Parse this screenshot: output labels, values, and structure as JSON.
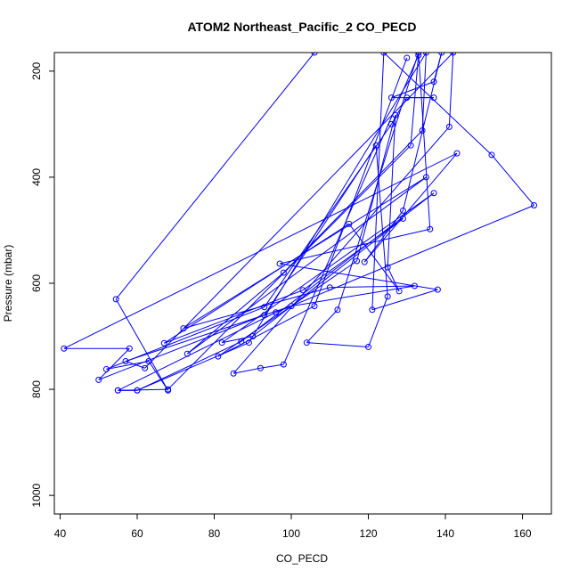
{
  "chart_data": {
    "type": "line",
    "title": "ATOM2 Northeast_Pacific_2 CO_PECD",
    "xlabel": "CO_PECD",
    "ylabel": "Pressure (mbar)",
    "xlim": [
      38.5,
      167.5
    ],
    "ylim": [
      1035,
      165
    ],
    "y_reversed": true,
    "x_ticks": [
      40,
      60,
      80,
      100,
      120,
      140,
      160
    ],
    "y_ticks": [
      200,
      400,
      600,
      800,
      1000
    ],
    "x_tick_labels": [
      "40",
      "60",
      "80",
      "100",
      "120",
      "140",
      "160"
    ],
    "y_tick_labels": [
      "200",
      "400",
      "600",
      "800",
      "1000"
    ],
    "grid": false,
    "legend": "none",
    "series_color": "#0000ff",
    "series": [
      {
        "values": [
          [
            106,
            165
          ],
          [
            54.5,
            630
          ],
          [
            68,
            802
          ],
          [
            63,
            747
          ],
          [
            52,
            762
          ],
          [
            93,
            645
          ],
          [
            126,
            300
          ],
          [
            130,
            250
          ],
          [
            137,
            250
          ],
          [
            126,
            250
          ],
          [
            137,
            220
          ],
          [
            139,
            165
          ],
          [
            129,
            463
          ],
          [
            119,
            560
          ],
          [
            143,
            355
          ],
          [
            41,
            723
          ],
          [
            58,
            723
          ],
          [
            50,
            782
          ],
          [
            93,
            660
          ],
          [
            122,
            340
          ],
          [
            125,
            625
          ],
          [
            120,
            720
          ],
          [
            104,
            712
          ],
          [
            112,
            650
          ],
          [
            133,
            165
          ],
          [
            136,
            498
          ],
          [
            97,
            563
          ],
          [
            138,
            612
          ],
          [
            121,
            650
          ],
          [
            124,
            165
          ],
          [
            152,
            358
          ],
          [
            163,
            453
          ],
          [
            96,
            655
          ],
          [
            55,
            802
          ],
          [
            60,
            802
          ],
          [
            89,
            712
          ],
          [
            135,
            165
          ],
          [
            134,
            312
          ],
          [
            98,
            580
          ],
          [
            73,
            733
          ],
          [
            135,
            400
          ],
          [
            72,
            685
          ],
          [
            110,
            608
          ],
          [
            132,
            605
          ],
          [
            100,
            643
          ],
          [
            57,
            747
          ],
          [
            62,
            760
          ],
          [
            142,
            165
          ],
          [
            141,
            305
          ],
          [
            85,
            770
          ],
          [
            92,
            760
          ],
          [
            98,
            753
          ],
          [
            133,
            170
          ],
          [
            131,
            340
          ],
          [
            68,
            800
          ],
          [
            55,
            802
          ],
          [
            60,
            802
          ],
          [
            87,
            710
          ],
          [
            137,
            430
          ],
          [
            82,
            712
          ],
          [
            90,
            700
          ],
          [
            129,
            478
          ],
          [
            103,
            613
          ],
          [
            67,
            713
          ],
          [
            115,
            488
          ],
          [
            128,
            615
          ],
          [
            125,
            570
          ],
          [
            127,
            283
          ],
          [
            117,
            558
          ],
          [
            81,
            738
          ],
          [
            106,
            643
          ],
          [
            130,
            175
          ]
        ]
      }
    ]
  }
}
